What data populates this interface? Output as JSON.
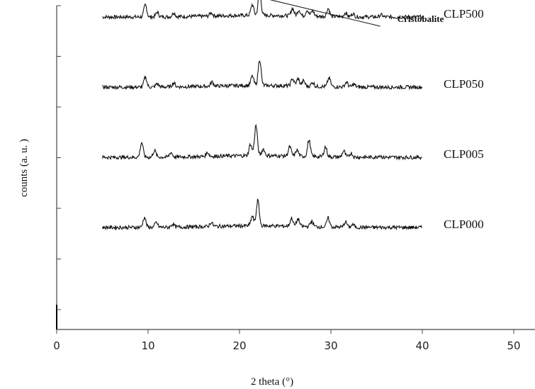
{
  "chart_data": {
    "type": "line",
    "title": "",
    "xlabel": "2 theta (°)",
    "ylabel": "counts (a. u. )",
    "xlim": [
      0,
      52
    ],
    "xticks": [
      0,
      10,
      20,
      30,
      40,
      50
    ],
    "x_range": [
      5,
      40
    ],
    "grid": false,
    "legend": "none",
    "line_color": "#111111",
    "annotation": {
      "text": "Cristobalite",
      "x": 22.2,
      "target_series": "CLP500"
    },
    "series": [
      {
        "name": "CLP500",
        "baseline": 4,
        "peaks": [
          [
            9.7,
            1.8
          ],
          [
            11.0,
            0.7
          ],
          [
            12.8,
            0.6
          ],
          [
            16.9,
            0.5
          ],
          [
            21.4,
            1.6
          ],
          [
            22.2,
            3.6
          ],
          [
            25.8,
            1.1
          ],
          [
            26.5,
            0.9
          ],
          [
            27.4,
            0.9
          ],
          [
            28.0,
            0.8
          ],
          [
            29.7,
            1.2
          ],
          [
            31.6,
            0.6
          ],
          [
            32.4,
            0.5
          ],
          [
            35.5,
            0.3
          ]
        ]
      },
      {
        "name": "CLP050",
        "baseline": 3,
        "peaks": [
          [
            9.7,
            1.5
          ],
          [
            11.0,
            0.5
          ],
          [
            12.8,
            0.6
          ],
          [
            17.0,
            0.6
          ],
          [
            21.4,
            1.4
          ],
          [
            22.2,
            3.9
          ],
          [
            25.8,
            1.1
          ],
          [
            26.4,
            1.1
          ],
          [
            27.0,
            0.8
          ],
          [
            28.0,
            0.6
          ],
          [
            29.8,
            1.3
          ],
          [
            31.7,
            0.7
          ],
          [
            32.5,
            0.4
          ]
        ]
      },
      {
        "name": "CLP005",
        "baseline": 2,
        "peaks": [
          [
            9.3,
            2.2
          ],
          [
            10.7,
            1.0
          ],
          [
            12.5,
            0.7
          ],
          [
            16.5,
            0.6
          ],
          [
            21.2,
            1.7
          ],
          [
            21.8,
            4.5
          ],
          [
            22.6,
            1.0
          ],
          [
            25.5,
            1.4
          ],
          [
            26.3,
            0.9
          ],
          [
            27.6,
            2.4
          ],
          [
            29.4,
            1.5
          ],
          [
            31.4,
            0.9
          ],
          [
            32.2,
            0.6
          ],
          [
            35.3,
            0.3
          ]
        ]
      },
      {
        "name": "CLP000",
        "baseline": 1,
        "peaks": [
          [
            9.6,
            1.5
          ],
          [
            10.9,
            0.7
          ],
          [
            12.7,
            0.5
          ],
          [
            16.9,
            0.6
          ],
          [
            21.4,
            1.4
          ],
          [
            22.0,
            3.8
          ],
          [
            25.7,
            1.2
          ],
          [
            26.4,
            1.1
          ],
          [
            27.9,
            0.8
          ],
          [
            29.7,
            1.3
          ],
          [
            31.6,
            0.8
          ],
          [
            32.4,
            0.4
          ]
        ]
      }
    ]
  }
}
